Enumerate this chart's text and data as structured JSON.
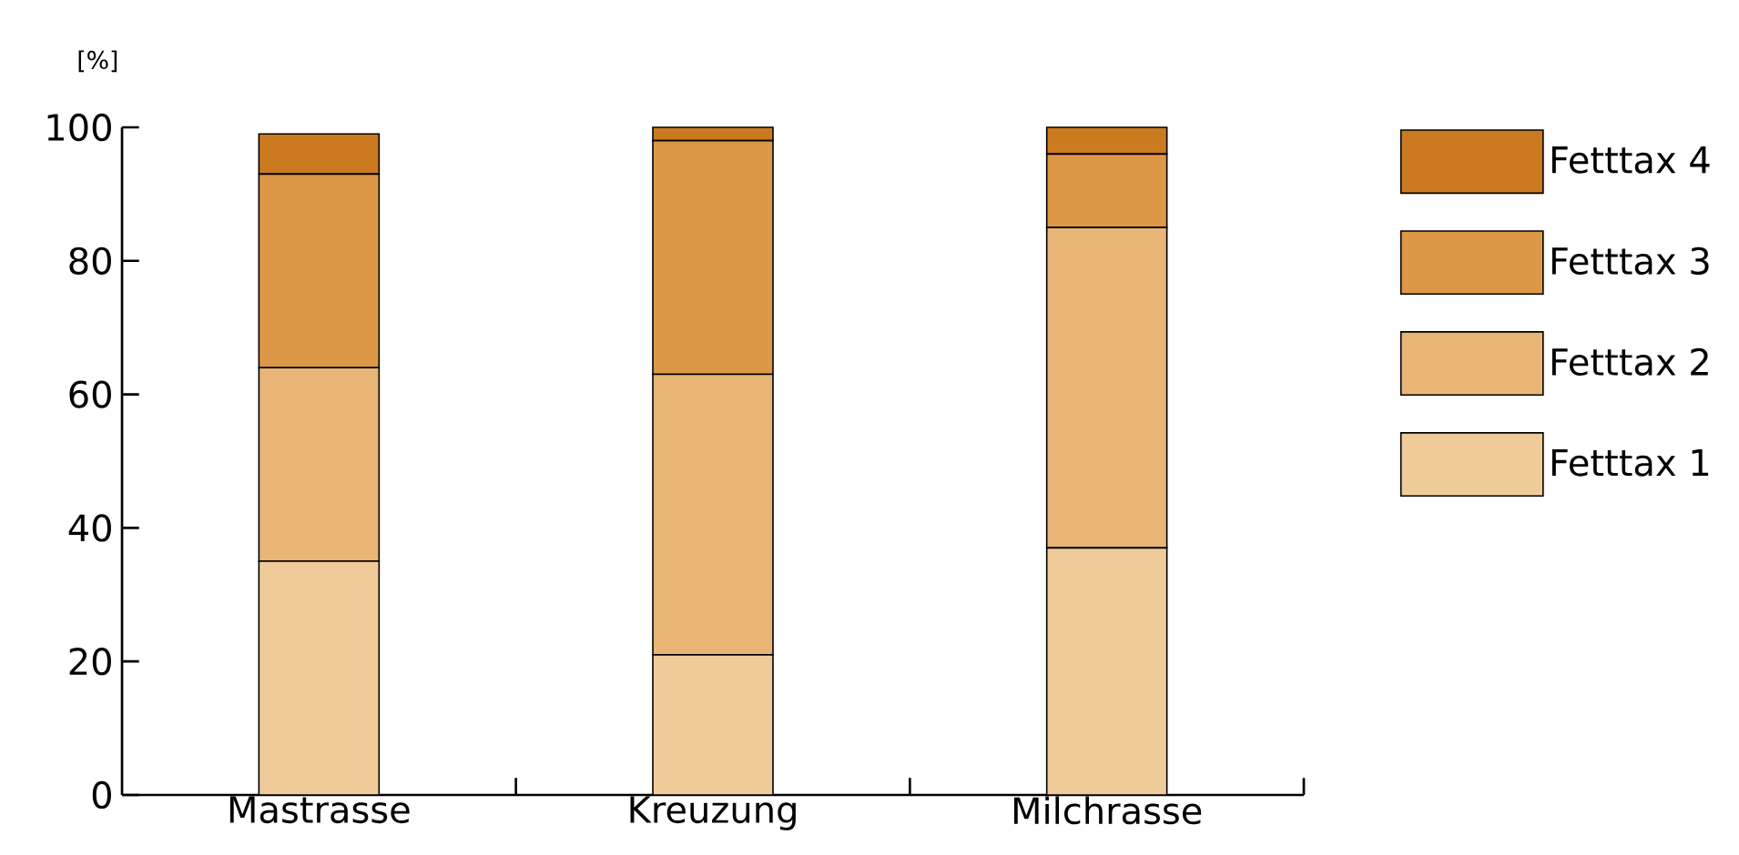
{
  "chart_data": {
    "type": "bar",
    "stacked": true,
    "ylabel": "[%]",
    "categories": [
      "Mastrasse",
      "Kreuzung",
      "Milchrasse"
    ],
    "series": [
      {
        "name": "Fetttax 1",
        "color": "#f0cb9a",
        "values": [
          35,
          21,
          37
        ]
      },
      {
        "name": "Fetttax 2",
        "color": "#e8b577",
        "values": [
          29,
          42,
          48
        ]
      },
      {
        "name": "Fetttax 3",
        "color": "#dc9846",
        "values": [
          29,
          35,
          11
        ]
      },
      {
        "name": "Fetttax 4",
        "color": "#cc7a20",
        "values": [
          6,
          2,
          4
        ]
      }
    ],
    "ylim": [
      0,
      100
    ],
    "yticks": [
      0,
      20,
      40,
      60,
      80,
      100
    ],
    "legend": "right",
    "grid": false
  }
}
